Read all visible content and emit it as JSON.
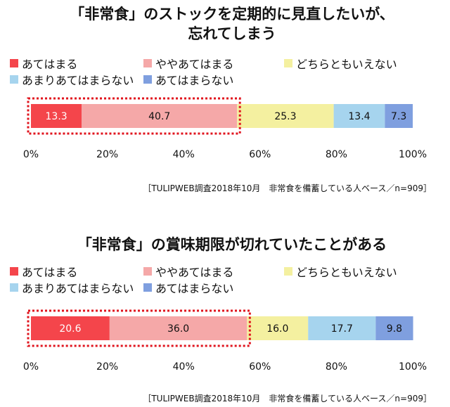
{
  "chart_data": [
    {
      "type": "bar",
      "orientation": "horizontal-stacked",
      "title_lines": [
        "「非常食」のストックを定期的に見直したいが、",
        "忘れてしまう"
      ],
      "categories": [
        "あてはまる",
        "ややあてはまる",
        "どちらともいえない",
        "あまりあてはまらない",
        "あてはまらない"
      ],
      "values": [
        13.3,
        40.7,
        25.3,
        13.4,
        7.3
      ],
      "colors": [
        "#f4454b",
        "#f5a8a8",
        "#f4f0a0",
        "#a6d4ee",
        "#7f9fdf"
      ],
      "xlim": [
        0,
        100
      ],
      "ticks": [
        "0%",
        "20%",
        "40%",
        "60%",
        "80%",
        "100%"
      ],
      "highlight": "あてはまる + ややあてはまる (dotted red box)",
      "source": "［TULIPWEB調査2018年10月　非常食を備蓄している人ベース／n=909］"
    },
    {
      "type": "bar",
      "orientation": "horizontal-stacked",
      "title_lines": [
        "「非常食」の賞味期限が切れていたことがある"
      ],
      "categories": [
        "あてはまる",
        "ややあてはまる",
        "どちらともいえない",
        "あまりあてはまらない",
        "あてはまらない"
      ],
      "values": [
        20.6,
        36.0,
        16.0,
        17.7,
        9.8
      ],
      "colors": [
        "#f4454b",
        "#f5a8a8",
        "#f4f0a0",
        "#a6d4ee",
        "#7f9fdf"
      ],
      "xlim": [
        0,
        100
      ],
      "ticks": [
        "0%",
        "20%",
        "40%",
        "60%",
        "80%",
        "100%"
      ],
      "highlight": "あてはまる + ややあてはまる (dotted red box)",
      "source": "［TULIPWEB調査2018年10月　非常食を備蓄している人ベース／n=909］"
    }
  ]
}
